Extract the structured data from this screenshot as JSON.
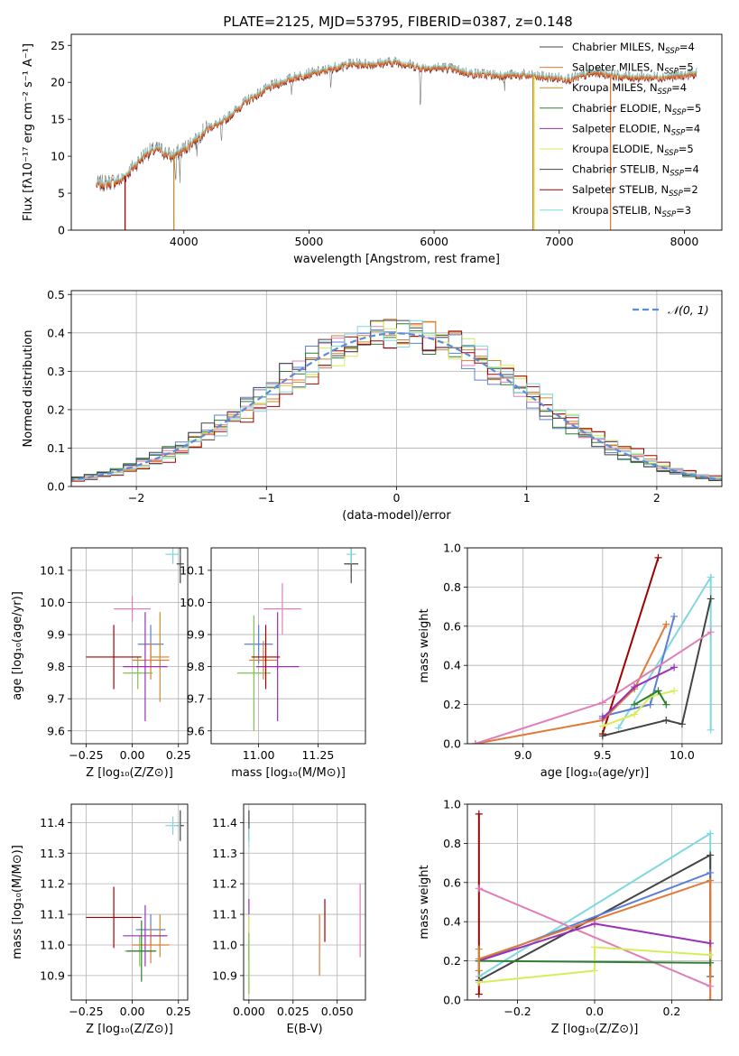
{
  "figure": {
    "title": "PLATE=2125, MJD=53795, FIBERID=0387, z=0.148"
  },
  "colors": {
    "miles_chabrier": "#5b7fd6",
    "miles_salpeter": "#e07a36",
    "miles_kroupa": "#c98a2e",
    "elodie_chabrier": "#2f7d34",
    "elodie_salpeter": "#9b30b8",
    "elodie_kroupa": "#d8ec5a",
    "stelib_chabrier": "#444444",
    "stelib_salpeter": "#a00000",
    "stelib_kroupa": "#7fd8e0",
    "gaussian": "#5b8bd9",
    "grid": "#b0b0b0",
    "pink": "#e07fb7",
    "olive": "#7fbf50"
  },
  "chart_data": [
    {
      "id": "spectrum",
      "type": "line",
      "title": "PLATE=2125, MJD=53795, FIBERID=0387, z=0.148",
      "xlabel": "wavelength [Angstrom, rest frame]",
      "ylabel": "Flux [fλ10⁻¹⁷ erg cm⁻² s⁻¹ A⁻¹]",
      "xlim": [
        3100,
        8300
      ],
      "ylim": [
        0,
        26.5
      ],
      "xticks": [
        4000,
        5000,
        6000,
        7000,
        8000
      ],
      "yticks": [
        0,
        5,
        10,
        15,
        20,
        25
      ],
      "legend_position": "top-right",
      "legend": [
        {
          "label": "Chabrier MILES, N",
          "sub": "SSP",
          "tail": "=4"
        },
        {
          "label": "Salpeter MILES, N",
          "sub": "SSP",
          "tail": "=5"
        },
        {
          "label": "Kroupa MILES, N",
          "sub": "SSP",
          "tail": "=4"
        },
        {
          "label": "Chabrier ELODIE, N",
          "sub": "SSP",
          "tail": "=5"
        },
        {
          "label": "Salpeter ELODIE, N",
          "sub": "SSP",
          "tail": "=4"
        },
        {
          "label": "Kroupa ELODIE, N",
          "sub": "SSP",
          "tail": "=5"
        },
        {
          "label": "Chabrier STELIB, N",
          "sub": "SSP",
          "tail": "=4"
        },
        {
          "label": "Salpeter STELIB, N",
          "sub": "SSP",
          "tail": "=2"
        },
        {
          "label": "Kroupa STELIB, N",
          "sub": "SSP",
          "tail": "=3"
        }
      ],
      "continuum": [
        [
          3300,
          6.2
        ],
        [
          3500,
          6.8
        ],
        [
          3700,
          10.5
        ],
        [
          3800,
          11
        ],
        [
          3900,
          10
        ],
        [
          4000,
          11
        ],
        [
          4100,
          12.5
        ],
        [
          4200,
          14
        ],
        [
          4300,
          14.5
        ],
        [
          4400,
          16
        ],
        [
          4500,
          17.5
        ],
        [
          4700,
          19.5
        ],
        [
          4900,
          20.8
        ],
        [
          5100,
          21.5
        ],
        [
          5300,
          22.5
        ],
        [
          5500,
          22.5
        ],
        [
          5700,
          22.8
        ],
        [
          5900,
          22
        ],
        [
          6100,
          22
        ],
        [
          6300,
          21.2
        ],
        [
          6500,
          21
        ],
        [
          6700,
          21
        ],
        [
          6900,
          20.7
        ],
        [
          7100,
          20.5
        ],
        [
          7300,
          21.4
        ],
        [
          7500,
          20.8
        ],
        [
          7700,
          20.7
        ],
        [
          7900,
          20.8
        ],
        [
          8100,
          21.2
        ]
      ],
      "cutoffs": [
        {
          "x": 3530,
          "series": "stelib_salpeter"
        },
        {
          "x": 3920,
          "series": "miles_kroupa"
        },
        {
          "x": 6790,
          "series": "miles_kroupa"
        },
        {
          "x": 6800,
          "series": "elodie_kroupa"
        },
        {
          "x": 7410,
          "series": "miles_salpeter"
        }
      ]
    },
    {
      "id": "residuals",
      "type": "histogram",
      "xlabel": "(data-model)/error",
      "ylabel": "Normed distribution",
      "xlim": [
        -2.5,
        2.5
      ],
      "ylim": [
        0,
        0.51
      ],
      "xticks": [
        -2,
        -1,
        0,
        1,
        2
      ],
      "yticks": [
        0.0,
        0.1,
        0.2,
        0.3,
        0.4,
        0.5
      ],
      "legend_position": "top-right",
      "gaussian_label": "𝒩(0, 1)",
      "bin_width": 0.1
    },
    {
      "id": "z_age",
      "type": "errorbar",
      "xlabel": "Z [log₁₀(Z/Z⊙)]",
      "ylabel": "age  [log₁₀(age/yr)]",
      "xlim": [
        -0.33,
        0.3
      ],
      "ylim": [
        9.56,
        10.17
      ],
      "xticks": [
        -0.25,
        0.0,
        0.25
      ],
      "yticks": [
        9.6,
        9.7,
        9.8,
        9.9,
        10.0,
        10.1
      ],
      "points": [
        {
          "x": 0.1,
          "y": 9.87,
          "xe": 0.07,
          "ye": 0.06,
          "c": "miles_chabrier"
        },
        {
          "x": 0.1,
          "y": 9.82,
          "xe": 0.1,
          "ye": 0.06,
          "c": "miles_salpeter"
        },
        {
          "x": 0.15,
          "y": 9.83,
          "xe": 0.05,
          "ye": 0.14,
          "c": "miles_kroupa"
        },
        {
          "x": 0.03,
          "y": 9.78,
          "xe": 0.08,
          "ye": 0.05,
          "c": "olive"
        },
        {
          "x": 0.07,
          "y": 9.8,
          "xe": 0.12,
          "ye": 0.17,
          "c": "elodie_salpeter"
        },
        {
          "x": -0.1,
          "y": 9.83,
          "xe": 0.15,
          "ye": 0.1,
          "c": "stelib_salpeter"
        },
        {
          "x": 0.26,
          "y": 10.12,
          "xe": 0.02,
          "ye": 0.06,
          "c": "stelib_chabrier"
        },
        {
          "x": 0.22,
          "y": 10.15,
          "xe": 0.04,
          "ye": 0.03,
          "c": "stelib_kroupa"
        },
        {
          "x": 0.0,
          "y": 9.98,
          "xe": 0.1,
          "ye": 0.04,
          "c": "pink"
        }
      ]
    },
    {
      "id": "mass_age",
      "type": "errorbar",
      "xlabel": "mass [log₁₀(M/M⊙)]",
      "ylabel": "",
      "xlim": [
        10.8,
        11.45
      ],
      "ylim": [
        9.56,
        10.17
      ],
      "xticks": [
        11.0,
        11.25
      ],
      "yticks": [
        9.6,
        9.7,
        9.8,
        9.9,
        10.0,
        10.1
      ],
      "points": [
        {
          "x": 11.0,
          "y": 9.87,
          "xe": 0.06,
          "ye": 0.06,
          "c": "miles_chabrier"
        },
        {
          "x": 11.02,
          "y": 9.82,
          "xe": 0.06,
          "ye": 0.06,
          "c": "miles_salpeter"
        },
        {
          "x": 10.98,
          "y": 9.78,
          "xe": 0.07,
          "ye": 0.18,
          "c": "olive"
        },
        {
          "x": 11.08,
          "y": 9.8,
          "xe": 0.09,
          "ye": 0.17,
          "c": "elodie_salpeter"
        },
        {
          "x": 11.03,
          "y": 9.83,
          "xe": 0.06,
          "ye": 0.1,
          "c": "stelib_salpeter"
        },
        {
          "x": 11.39,
          "y": 10.12,
          "xe": 0.03,
          "ye": 0.06,
          "c": "stelib_chabrier"
        },
        {
          "x": 11.39,
          "y": 10.15,
          "xe": 0.02,
          "ye": 0.03,
          "c": "stelib_kroupa"
        },
        {
          "x": 11.1,
          "y": 9.98,
          "xe": 0.08,
          "ye": 0.08,
          "c": "pink"
        }
      ]
    },
    {
      "id": "age_weight",
      "type": "line",
      "xlabel": "age  [log₁₀(age/yr)]",
      "ylabel": "mass weight",
      "xlim": [
        8.65,
        10.25
      ],
      "ylim": [
        0,
        1.0
      ],
      "xticks": [
        9.0,
        9.5,
        10.0
      ],
      "yticks": [
        0.0,
        0.2,
        0.4,
        0.6,
        0.8,
        1.0
      ],
      "series": [
        {
          "c": "stelib_salpeter",
          "pts": [
            [
              9.5,
              0.05
            ],
            [
              9.85,
              0.95
            ]
          ]
        },
        {
          "c": "stelib_kroupa",
          "pts": [
            [
              9.6,
              0.08
            ],
            [
              10.18,
              0.85
            ],
            [
              10.18,
              0.07
            ]
          ]
        },
        {
          "c": "stelib_chabrier",
          "pts": [
            [
              9.5,
              0.04
            ],
            [
              9.9,
              0.12
            ],
            [
              10.0,
              0.1
            ],
            [
              10.18,
              0.74
            ]
          ]
        },
        {
          "c": "miles_chabrier",
          "pts": [
            [
              9.5,
              0.14
            ],
            [
              9.8,
              0.2
            ],
            [
              9.95,
              0.65
            ]
          ]
        },
        {
          "c": "miles_salpeter",
          "pts": [
            [
              8.7,
              0.0
            ],
            [
              9.5,
              0.12
            ],
            [
              9.7,
              0.28
            ],
            [
              9.9,
              0.61
            ]
          ]
        },
        {
          "c": "pink",
          "pts": [
            [
              8.7,
              0.0
            ],
            [
              9.5,
              0.21
            ],
            [
              10.18,
              0.57
            ]
          ]
        },
        {
          "c": "elodie_salpeter",
          "pts": [
            [
              9.5,
              0.13
            ],
            [
              9.7,
              0.29
            ],
            [
              9.95,
              0.39
            ]
          ]
        },
        {
          "c": "elodie_kroupa",
          "pts": [
            [
              9.5,
              0.09
            ],
            [
              9.7,
              0.15
            ],
            [
              9.8,
              0.24
            ],
            [
              9.95,
              0.27
            ]
          ]
        },
        {
          "c": "elodie_chabrier",
          "pts": [
            [
              9.7,
              0.2
            ],
            [
              9.85,
              0.27
            ],
            [
              9.9,
              0.2
            ]
          ]
        }
      ]
    },
    {
      "id": "z_mass",
      "type": "errorbar",
      "xlabel": "Z [log₁₀(Z/Z⊙)]",
      "ylabel": "mass [log₁₀(M/M⊙)]",
      "xlim": [
        -0.33,
        0.3
      ],
      "ylim": [
        10.82,
        11.46
      ],
      "xticks": [
        -0.25,
        0.0,
        0.25
      ],
      "yticks": [
        10.9,
        11.0,
        11.1,
        11.2,
        11.3,
        11.4
      ],
      "points": [
        {
          "x": 0.1,
          "y": 11.05,
          "xe": 0.08,
          "ye": 0.05,
          "c": "miles_chabrier"
        },
        {
          "x": 0.1,
          "y": 11.0,
          "xe": 0.1,
          "ye": 0.06,
          "c": "miles_salpeter"
        },
        {
          "x": 0.15,
          "y": 11.03,
          "xe": 0.04,
          "ye": 0.07,
          "c": "miles_kroupa"
        },
        {
          "x": 0.04,
          "y": 10.98,
          "xe": 0.08,
          "ye": 0.05,
          "c": "olive"
        },
        {
          "x": 0.07,
          "y": 11.03,
          "xe": 0.12,
          "ye": 0.1,
          "c": "elodie_salpeter"
        },
        {
          "x": -0.1,
          "y": 11.09,
          "xe": 0.15,
          "ye": 0.1,
          "c": "stelib_salpeter"
        },
        {
          "x": 0.26,
          "y": 11.39,
          "xe": 0.02,
          "ye": 0.05,
          "c": "stelib_chabrier"
        },
        {
          "x": 0.22,
          "y": 11.39,
          "xe": 0.04,
          "ye": 0.03,
          "c": "stelib_kroupa"
        },
        {
          "x": 0.05,
          "y": 10.98,
          "xe": 0.08,
          "ye": 0.1,
          "c": "elodie_chabrier"
        }
      ]
    },
    {
      "id": "ebv_mass",
      "type": "errorbar",
      "xlabel": "E(B-V)",
      "ylabel": "",
      "xlim": [
        -0.003,
        0.066
      ],
      "ylim": [
        10.82,
        11.46
      ],
      "xticks": [
        0.0,
        0.025,
        0.05
      ],
      "yticks": [
        10.9,
        11.0,
        11.1,
        11.2,
        11.3,
        11.4
      ],
      "points": [
        {
          "x": 0.0,
          "y": 11.39,
          "xe": 0,
          "ye": 0.05,
          "c": "stelib_chabrier"
        },
        {
          "x": 0.0,
          "y": 11.35,
          "xe": 0,
          "ye": 0.03,
          "c": "stelib_kroupa"
        },
        {
          "x": 0.0,
          "y": 11.05,
          "xe": 0,
          "ye": 0.1,
          "c": "elodie_salpeter"
        },
        {
          "x": 0.0,
          "y": 10.98,
          "xe": 0,
          "ye": 0.12,
          "c": "elodie_kroupa"
        },
        {
          "x": 0.0,
          "y": 10.94,
          "xe": 0,
          "ye": 0.1,
          "c": "olive"
        },
        {
          "x": 0.04,
          "y": 11.0,
          "xe": 0,
          "ye": 0.1,
          "c": "miles_salpeter"
        },
        {
          "x": 0.043,
          "y": 11.08,
          "xe": 0,
          "ye": 0.07,
          "c": "stelib_salpeter"
        },
        {
          "x": 0.063,
          "y": 11.08,
          "xe": 0,
          "ye": 0.12,
          "c": "pink"
        }
      ]
    },
    {
      "id": "z_weight",
      "type": "line",
      "xlabel": "Z [log₁₀(Z/Z⊙)]",
      "ylabel": "mass weight",
      "xlim": [
        -0.33,
        0.33
      ],
      "ylim": [
        0,
        1.0
      ],
      "xticks": [
        -0.2,
        0.0,
        0.2
      ],
      "yticks": [
        0.0,
        0.2,
        0.4,
        0.6,
        0.8,
        1.0
      ],
      "series": [
        {
          "c": "stelib_salpeter",
          "pts": [
            [
              -0.3,
              0.95
            ],
            [
              -0.3,
              0.03
            ]
          ]
        },
        {
          "c": "stelib_kroupa",
          "pts": [
            [
              -0.3,
              0.12
            ],
            [
              0.3,
              0.85
            ],
            [
              0.3,
              0.0
            ]
          ]
        },
        {
          "c": "stelib_chabrier",
          "pts": [
            [
              -0.3,
              0.1
            ],
            [
              0.3,
              0.74
            ],
            [
              0.3,
              0.12
            ]
          ]
        },
        {
          "c": "miles_chabrier",
          "pts": [
            [
              -0.3,
              0.2
            ],
            [
              0.3,
              0.65
            ]
          ]
        },
        {
          "c": "miles_salpeter",
          "pts": [
            [
              -0.3,
              0.21
            ],
            [
              0.3,
              0.61
            ],
            [
              0.3,
              0.0
            ]
          ]
        },
        {
          "c": "pink",
          "pts": [
            [
              -0.3,
              0.57
            ],
            [
              0.3,
              0.07
            ]
          ]
        },
        {
          "c": "elodie_salpeter",
          "pts": [
            [
              -0.3,
              0.2
            ],
            [
              0.0,
              0.39
            ],
            [
              0.3,
              0.29
            ]
          ]
        },
        {
          "c": "elodie_kroupa",
          "pts": [
            [
              -0.3,
              0.09
            ],
            [
              0.0,
              0.15
            ],
            [
              0.0,
              0.27
            ],
            [
              0.3,
              0.23
            ]
          ]
        },
        {
          "c": "elodie_chabrier",
          "pts": [
            [
              -0.3,
              0.2
            ],
            [
              0.3,
              0.19
            ]
          ]
        },
        {
          "c": "miles_kroupa",
          "pts": [
            [
              -0.3,
              0.26
            ],
            [
              -0.3,
              0.15
            ]
          ]
        }
      ]
    }
  ]
}
